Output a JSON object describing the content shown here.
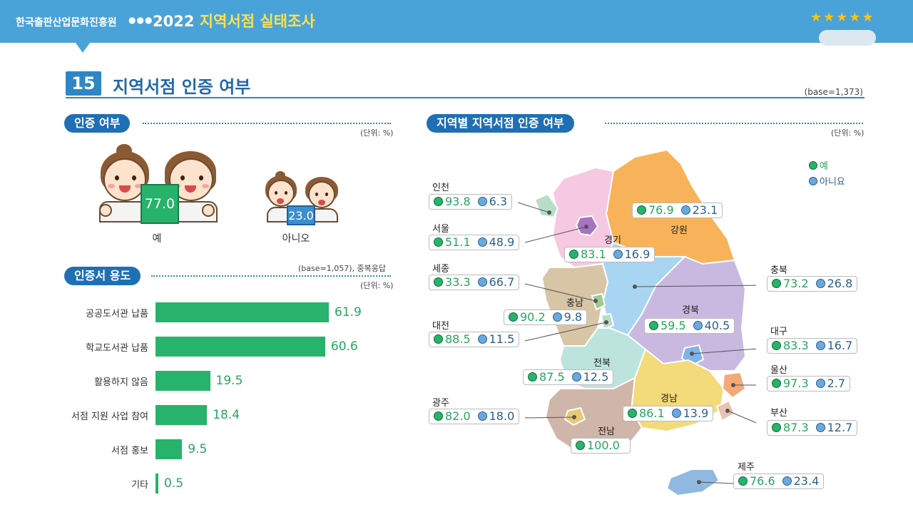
{
  "header": {
    "org": "한국출판산업문화진흥원",
    "dots": "●●●",
    "year": "2022",
    "title": "지역서점 실태조사",
    "stars": "★★★★★"
  },
  "section": {
    "number": "15",
    "title": "지역서점 인증 여부",
    "base": "(base=1,373)"
  },
  "cert_status": {
    "pill": "인증 여부",
    "unit": "(단위: %)",
    "yes_label": "예",
    "yes_value": "77.0",
    "no_label": "아니오",
    "no_value": "23.0"
  },
  "usage": {
    "pill": "인증서 용도",
    "base": "(base=1,057), 중복응답",
    "unit": "(단위: %)"
  },
  "regional": {
    "pill": "지역별 지역서점 인증 여부",
    "unit": "(단위: %)",
    "legend_yes": "예",
    "legend_no": "아니요"
  },
  "chart_data": [
    {
      "type": "bar",
      "orientation": "horizontal",
      "categories": [
        "공공도서관 납품",
        "학교도서관 납품",
        "활용하지 않음",
        "서점 지원 사업 참여",
        "서점 홍보",
        "기타"
      ],
      "values": [
        61.9,
        60.6,
        19.5,
        18.4,
        9.5,
        0.5
      ],
      "value_labels": [
        "61.9",
        "60.6",
        "19.5",
        "18.4",
        "9.5",
        "0.5"
      ],
      "xlim": [
        0,
        100
      ],
      "color": "#27b36b"
    },
    {
      "type": "table",
      "legend": [
        "예",
        "아니요"
      ],
      "regions": [
        {
          "name": "인천",
          "yes": "93.8",
          "no": "6.3"
        },
        {
          "name": "서울",
          "yes": "51.1",
          "no": "48.9"
        },
        {
          "name": "세종",
          "yes": "33.3",
          "no": "66.7"
        },
        {
          "name": "대전",
          "yes": "88.5",
          "no": "11.5"
        },
        {
          "name": "광주",
          "yes": "82.0",
          "no": "18.0"
        },
        {
          "name": "강원",
          "yes": "76.9",
          "no": "23.1"
        },
        {
          "name": "경기",
          "yes": "83.1",
          "no": "16.9"
        },
        {
          "name": "충남",
          "yes": "90.2",
          "no": "9.8"
        },
        {
          "name": "경북",
          "yes": "59.5",
          "no": "40.5"
        },
        {
          "name": "전북",
          "yes": "87.5",
          "no": "12.5"
        },
        {
          "name": "경남",
          "yes": "86.1",
          "no": "13.9"
        },
        {
          "name": "전남",
          "yes": "100.0",
          "no": ""
        },
        {
          "name": "충북",
          "yes": "73.2",
          "no": "26.8"
        },
        {
          "name": "대구",
          "yes": "83.3",
          "no": "16.7"
        },
        {
          "name": "울산",
          "yes": "97.3",
          "no": "2.7"
        },
        {
          "name": "부산",
          "yes": "87.3",
          "no": "12.7"
        },
        {
          "name": "제주",
          "yes": "76.6",
          "no": "23.4"
        }
      ]
    }
  ]
}
